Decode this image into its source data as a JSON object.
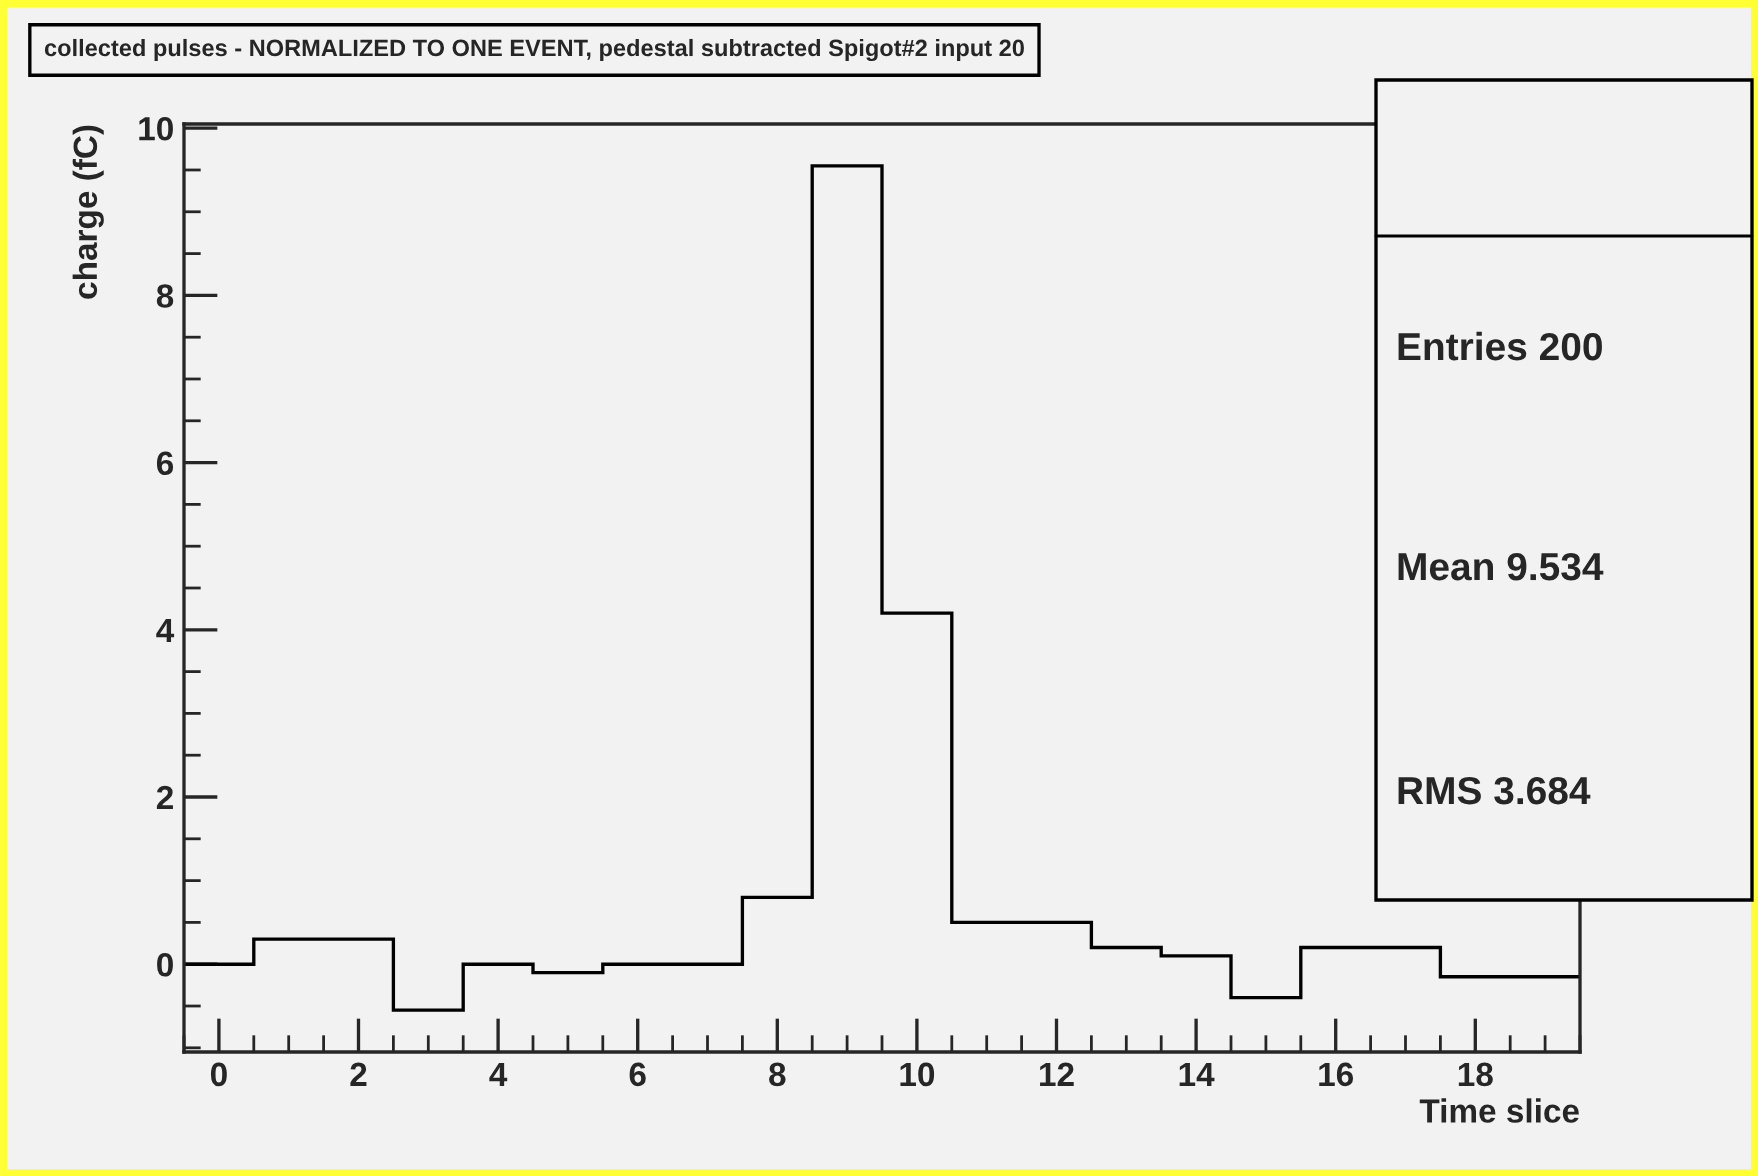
{
  "chart_data": {
    "type": "histogram",
    "title": "collected pulses - NORMALIZED TO ONE EVENT, pedestal subtracted Spigot#2 input 20",
    "xlabel": "Time slice",
    "ylabel": "charge (fC)",
    "bins": [
      -0.5,
      0.5,
      1.5,
      2.5,
      3.5,
      4.5,
      5.5,
      6.5,
      7.5,
      8.5,
      9.5,
      10.5,
      11.5,
      12.5,
      13.5,
      14.5,
      15.5,
      16.5,
      17.5,
      18.5,
      19.5
    ],
    "values": [
      0,
      0.3,
      0.3,
      -0.55,
      0,
      -0.1,
      0,
      0,
      0.8,
      9.55,
      4.2,
      0.5,
      0.5,
      0.2,
      0.1,
      -0.4,
      0.2,
      0.2,
      -0.15,
      -0.15
    ],
    "color": "#000000",
    "xlim": [
      -0.5,
      19.5
    ],
    "ylim": [
      -1.05,
      10.05
    ],
    "xticks": [
      0,
      2,
      4,
      6,
      8,
      10,
      12,
      14,
      16,
      18
    ],
    "yticks": [
      0,
      2,
      4,
      6,
      8,
      10
    ],
    "annotations": [
      "Entries 200",
      "Mean 9.534",
      "RMS 3.684"
    ]
  }
}
